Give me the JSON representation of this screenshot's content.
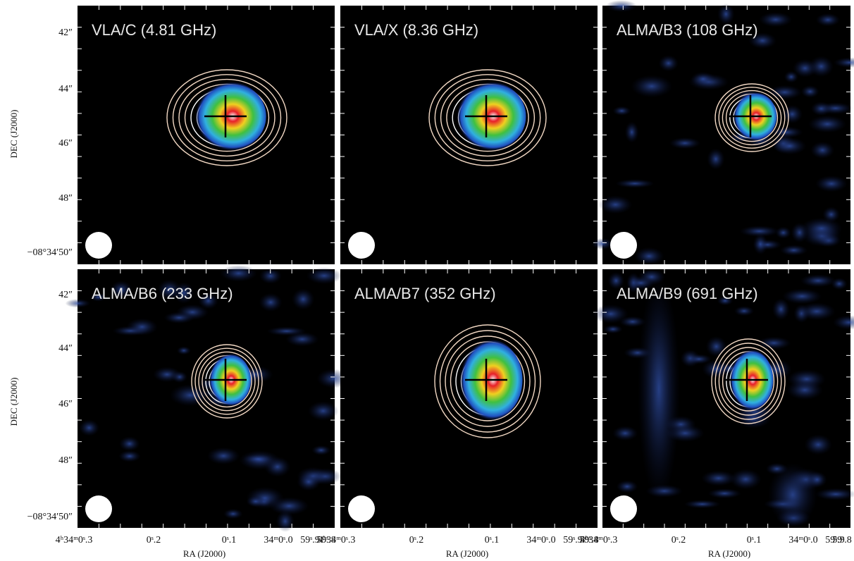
{
  "panels": [
    {
      "label": "VLA/C (4.81 GHz)"
    },
    {
      "label": "VLA/X (8.36 GHz)"
    },
    {
      "label": "ALMA/B3 (108 GHz)"
    },
    {
      "label": "ALMA/B6 (233 GHz)"
    },
    {
      "label": "ALMA/B7 (352 GHz)"
    },
    {
      "label": "ALMA/B9 (691 GHz)"
    }
  ],
  "dec_ticks": [
    "42″",
    "44″",
    "46″",
    "48″",
    "−08°34′50″"
  ],
  "ra_ticks": [
    "4ʰ34ᵐ0ˢ.3",
    "0ˢ.2",
    "0ˢ.1",
    "34ᵐ0ˢ.0",
    "59ˢ.9",
    "59ˢ.8"
  ],
  "dec_axis_label": "DEC (J2000)",
  "ra_axis_label": "RA (J2000)"
}
